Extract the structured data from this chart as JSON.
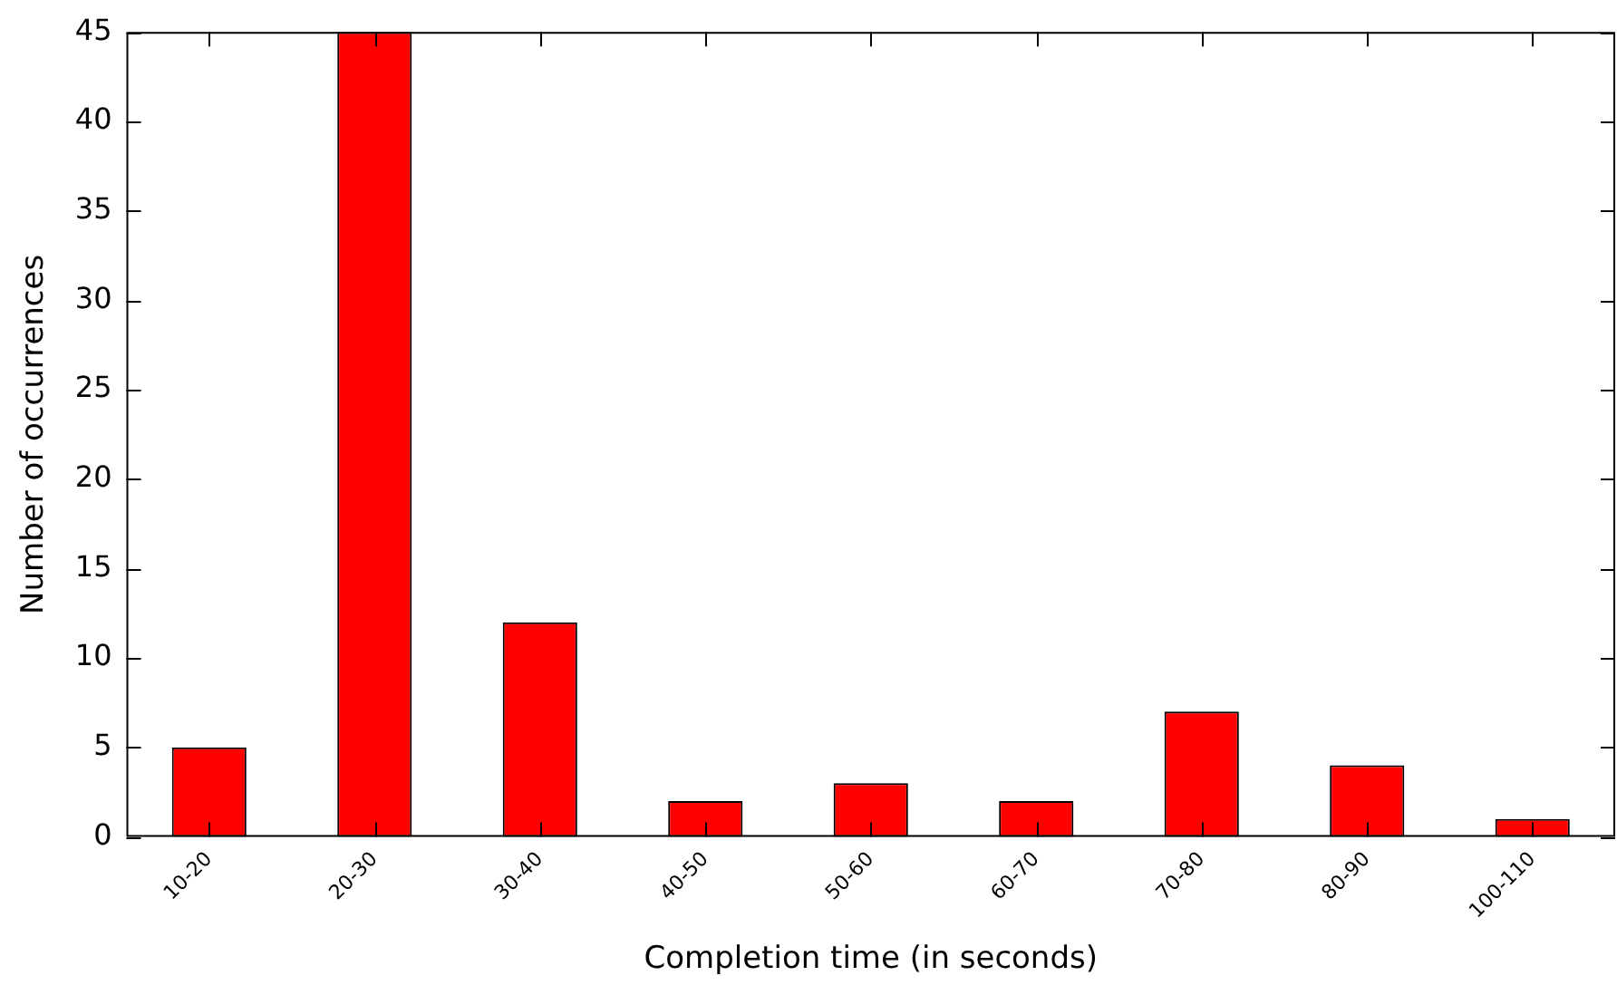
{
  "chart_data": {
    "type": "bar",
    "xlabel": "Completion time (in seconds)",
    "ylabel": "Number of occurrences",
    "categories": [
      "10-20",
      "20-30",
      "30-40",
      "40-50",
      "50-60",
      "60-70",
      "70-80",
      "80-90",
      "100-110"
    ],
    "values": [
      5,
      45,
      12,
      2,
      3,
      2,
      7,
      4,
      1
    ],
    "color": "#ff0000",
    "ylim": [
      0,
      45
    ],
    "yticks": [
      0,
      5,
      10,
      15,
      20,
      25,
      30,
      35,
      40,
      45
    ],
    "grid": false,
    "legend": false
  }
}
